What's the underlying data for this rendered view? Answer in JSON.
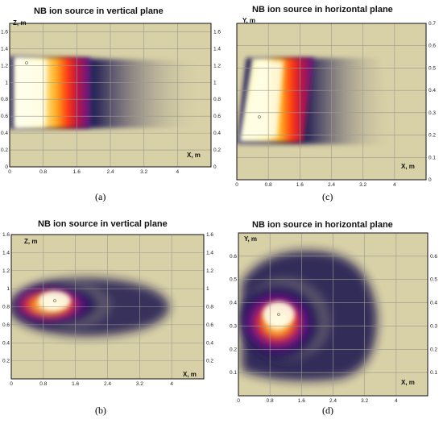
{
  "colors": {
    "plot_bg": "#d8d0a6",
    "grid": "#9a9a90",
    "axis": "#111111",
    "colormap": [
      "#d8d0a6",
      "#1a1550",
      "#5a1a8a",
      "#c01840",
      "#ff3a10",
      "#ff9a10",
      "#ffe070",
      "#ffffe0"
    ]
  },
  "chart_data": [
    {
      "id": "a",
      "type": "heatmap",
      "title": "NB ion source in vertical plane",
      "xlabel": "X, m",
      "ylabel": "Z, m",
      "caption": "(a)",
      "xlim": [
        0,
        4.8
      ],
      "ylim": [
        0,
        1.7
      ],
      "xticks": [
        "0",
        "0.8",
        "1.6",
        "2.4",
        "3.2",
        "4"
      ],
      "yticks": [
        "0",
        "0.2",
        "0.4",
        "0.6",
        "0.8",
        "1",
        "1.2",
        "1.4",
        "1.6"
      ],
      "beam": {
        "shape": "trapezoid",
        "x_start": 0.0,
        "x_bright_end": 1.5,
        "x_fade_end": 4.6,
        "y_min": 0.5,
        "y_max": 1.25,
        "peak_x": 0.4,
        "peak_y": 1.2
      }
    },
    {
      "id": "b",
      "type": "heatmap",
      "title": "NB ion source in vertical plane",
      "xlabel": "X, m",
      "ylabel": "Z, m",
      "caption": "(b)",
      "xlim": [
        0,
        4.8
      ],
      "ylim": [
        0,
        1.6
      ],
      "xticks": [
        "0",
        "0.8",
        "1.6",
        "2.4",
        "3.2",
        "4"
      ],
      "yticks": [
        "0.2",
        "0.4",
        "0.6",
        "0.8",
        "1",
        "1.2",
        "1.4",
        "1.6"
      ],
      "beam": {
        "shape": "ellipse",
        "center_x": 1.0,
        "center_y": 0.85,
        "peak_x": 0.9,
        "peak_y": 0.9,
        "x_extent": [
          0.2,
          4.0
        ],
        "y_extent": [
          0.6,
          1.1
        ]
      }
    },
    {
      "id": "c",
      "type": "heatmap",
      "title": "NB ion source in  horizontal plane",
      "xlabel": "X, m",
      "ylabel": "Y, m",
      "caption": "(c)",
      "xlim": [
        0,
        4.8
      ],
      "ylim": [
        0,
        0.7
      ],
      "xticks": [
        "0",
        "0.8",
        "1.6",
        "2.4",
        "3.2",
        "4"
      ],
      "yticks": [
        "0",
        "0.1",
        "0.2",
        "0.3",
        "0.4",
        "0.5",
        "0.6",
        "0.7"
      ],
      "beam": {
        "shape": "parallelogram",
        "x_start": 0.0,
        "x_bright_end": 1.6,
        "x_fade_end": 4.0,
        "y_min": 0.18,
        "y_max": 0.56,
        "peak_x": 0.5,
        "peak_y": 0.29
      }
    },
    {
      "id": "d",
      "type": "heatmap",
      "title": "NB ion source in  horizontal plane",
      "xlabel": "X, m",
      "ylabel": "Y, m",
      "caption": "(d)",
      "xlim": [
        0,
        4.8
      ],
      "ylim": [
        0,
        0.7
      ],
      "xticks": [
        "0",
        "0.8",
        "1.6",
        "2.4",
        "3.2",
        "4"
      ],
      "yticks": [
        "0.1",
        "0.2",
        "0.3",
        "0.4",
        "0.5",
        "0.6"
      ],
      "beam": {
        "shape": "ellipse",
        "center_x": 1.1,
        "center_y": 0.33,
        "peak_x": 1.0,
        "peak_y": 0.34,
        "x_extent": [
          0.0,
          3.8
        ],
        "y_extent": [
          0.1,
          0.62
        ]
      }
    }
  ]
}
